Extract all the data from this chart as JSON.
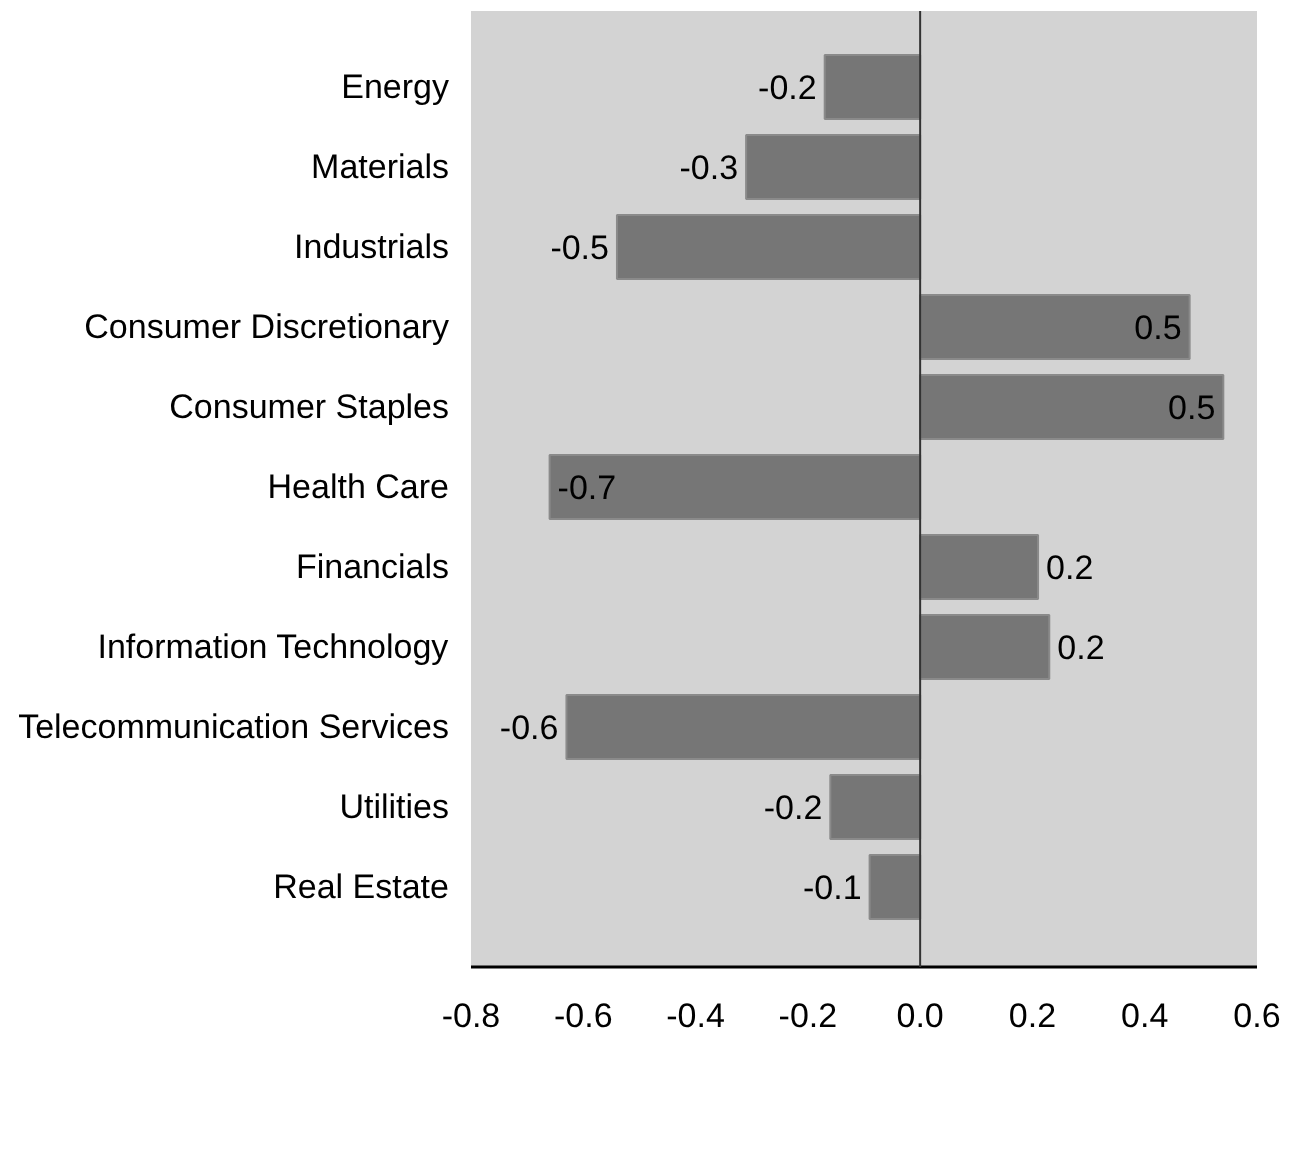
{
  "chart_data": {
    "type": "bar",
    "orientation": "horizontal",
    "categories": [
      "Energy",
      "Materials",
      "Industrials",
      "Consumer Discretionary",
      "Consumer Staples",
      "Health Care",
      "Financials",
      "Information Technology",
      "Telecommunication Services",
      "Utilities",
      "Real Estate"
    ],
    "values": [
      -0.17,
      -0.31,
      -0.54,
      0.48,
      0.54,
      -0.66,
      0.21,
      0.23,
      -0.63,
      -0.16,
      -0.09
    ],
    "value_labels": [
      "-0.2",
      "-0.3",
      "-0.5",
      "0.5",
      "0.5",
      "-0.7",
      "0.2",
      "0.2",
      "-0.6",
      "-0.2",
      "-0.1"
    ],
    "color": "#767676",
    "xlim": [
      -0.8,
      0.6
    ],
    "xticks": [
      -0.8,
      -0.6,
      -0.4,
      -0.2,
      {
        "value": 0,
        "label": "0.0"
      },
      0.2,
      0.4,
      0.6
    ],
    "ref_lines": [
      {
        "axis": "x",
        "value": 0,
        "color": "#333333"
      }
    ],
    "grid": false
  }
}
